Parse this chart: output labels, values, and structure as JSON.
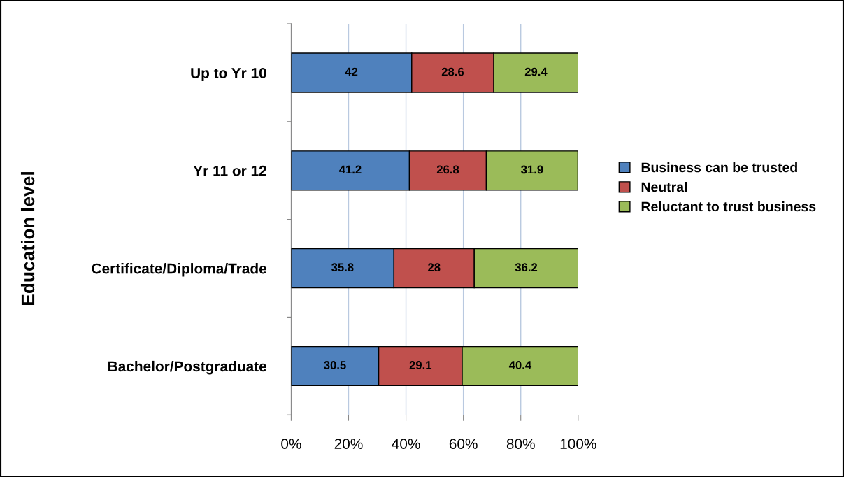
{
  "chart_data": {
    "type": "bar",
    "orientation": "horizontal",
    "stacked": true,
    "ylabel": "Education level",
    "categories": [
      "Up to Yr 10",
      "Yr 11 or 12",
      "Certificate/Diploma/Trade",
      "Bachelor/Postgraduate"
    ],
    "series": [
      {
        "name": "Business can be trusted",
        "color": "#4f81bd",
        "values": [
          42,
          41.2,
          35.8,
          30.5
        ]
      },
      {
        "name": "Neutral",
        "color": "#c0504d",
        "values": [
          28.6,
          26.8,
          28,
          29.1
        ]
      },
      {
        "name": "Reluctant to trust business",
        "color": "#9bbb59",
        "values": [
          29.4,
          31.9,
          36.2,
          40.4
        ]
      }
    ],
    "xlim": [
      0,
      100
    ],
    "xticks": [
      {
        "value": 0,
        "label": "0%"
      },
      {
        "value": 20,
        "label": "20%"
      },
      {
        "value": 40,
        "label": "40%"
      },
      {
        "value": 60,
        "label": "60%"
      },
      {
        "value": 80,
        "label": "80%"
      },
      {
        "value": 100,
        "label": "100%"
      }
    ],
    "grid": "x",
    "legend": "right",
    "data_labels": true
  }
}
